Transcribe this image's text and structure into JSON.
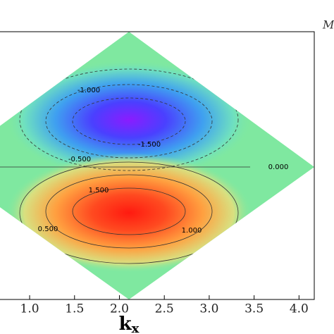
{
  "chart_data": {
    "type": "contour",
    "xlabel": "k",
    "xlabel_subscript": "x",
    "annotation": "M",
    "xlim": [
      0.67,
      4.17
    ],
    "xticks": [
      {
        "value": 1.0,
        "label": "1.0"
      },
      {
        "value": 1.5,
        "label": "1.5"
      },
      {
        "value": 2.0,
        "label": "2.0"
      },
      {
        "value": 2.5,
        "label": "2.5"
      },
      {
        "value": 3.0,
        "label": "3.0"
      },
      {
        "value": 3.5,
        "label": "3.5"
      },
      {
        "value": 4.0,
        "label": "4.0"
      }
    ],
    "levels": [
      {
        "value": -1.5,
        "label": "-1.500"
      },
      {
        "value": -1.0,
        "label": "-1.000"
      },
      {
        "value": -0.5,
        "label": "-0.500"
      },
      {
        "value": 0,
        "label": "0.000"
      },
      {
        "value": 0.5,
        "label": "0.500"
      },
      {
        "value": 1.0,
        "label": "1.000"
      },
      {
        "value": 1.5,
        "label": "1.500"
      }
    ]
  }
}
